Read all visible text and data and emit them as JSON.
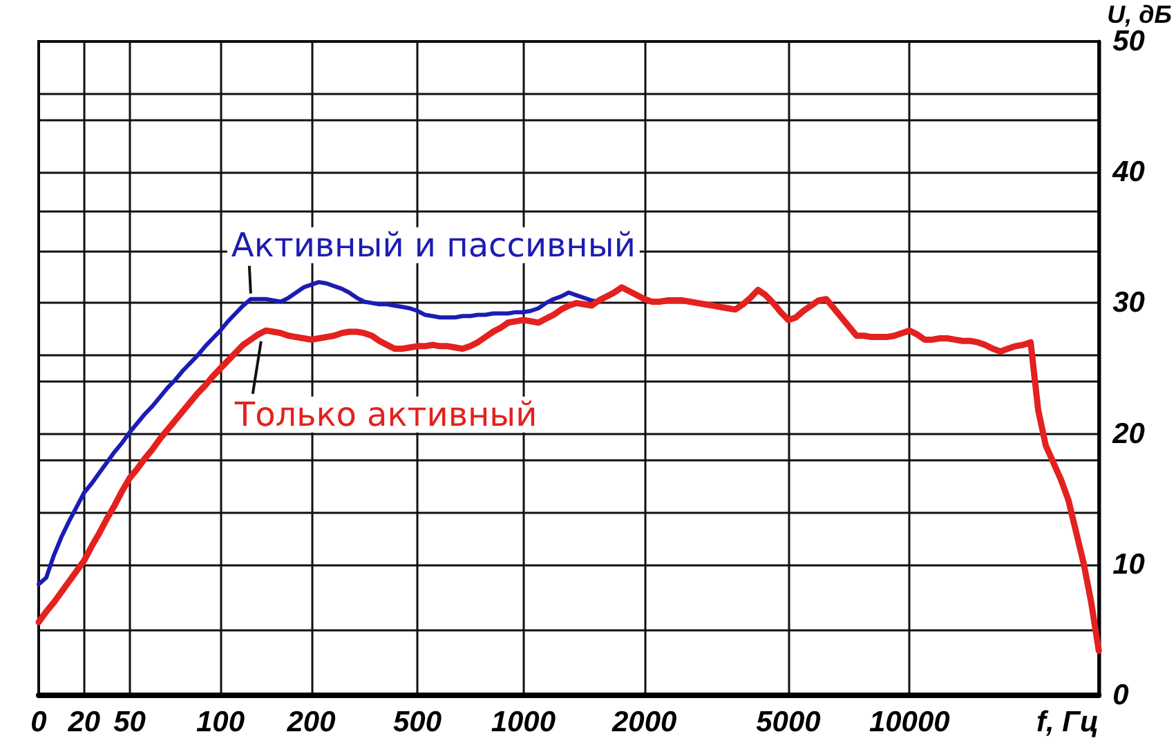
{
  "chart_data": {
    "type": "line",
    "xlabel": "f, Гц",
    "ylabel": "U, дБ",
    "grid": true,
    "legend": false,
    "marker": "none",
    "line_style": "solid",
    "categories": [
      "0",
      null,
      null,
      null,
      null,
      null,
      "20",
      null,
      null,
      null,
      null,
      null,
      "50",
      null,
      null,
      null,
      null,
      null,
      null,
      null,
      null,
      null,
      null,
      null,
      "100",
      null,
      null,
      null,
      null,
      null,
      null,
      null,
      null,
      null,
      null,
      null,
      "200",
      null,
      null,
      null,
      null,
      null,
      null,
      null,
      null,
      null,
      null,
      null,
      null,
      null,
      "500",
      null,
      null,
      null,
      null,
      null,
      null,
      null,
      null,
      null,
      null,
      null,
      null,
      null,
      "1000",
      null,
      null,
      null,
      null,
      null,
      null,
      null,
      null,
      null,
      null,
      null,
      null,
      null,
      null,
      null,
      "2000",
      null,
      null,
      null,
      null,
      null,
      null,
      null,
      null,
      null,
      null,
      null,
      null,
      null,
      null,
      null,
      null,
      null,
      null,
      "5000",
      null,
      null,
      null,
      null,
      null,
      null,
      null,
      null,
      null,
      null,
      null,
      null,
      null,
      null,
      null,
      "10000",
      null,
      null,
      null,
      null,
      null,
      null,
      null,
      null,
      null,
      null,
      null,
      null,
      null,
      null,
      null,
      null,
      null,
      null,
      null,
      null,
      null,
      null,
      null,
      null,
      null
    ],
    "ylim": [
      0,
      50
    ],
    "yticks": [
      0,
      {
        "value": 5,
        "label": null
      },
      10,
      {
        "value": 14,
        "label": null
      },
      {
        "value": 18,
        "label": null
      },
      20,
      {
        "value": 24,
        "label": null
      },
      {
        "value": 26,
        "label": null
      },
      30,
      {
        "value": 34,
        "label": null
      },
      {
        "value": 37,
        "label": null
      },
      40,
      {
        "value": 44,
        "label": null
      },
      {
        "value": 46,
        "label": null
      },
      50
    ],
    "series": [
      {
        "name": "Активный и пассивный",
        "color": "#1c1cb4",
        "values": [
          8.5,
          9,
          10.7,
          12.1,
          13.3,
          14.4,
          15.5,
          16.2,
          17,
          17.8,
          18.6,
          19.3,
          20.1,
          20.8,
          21.5,
          22.1,
          22.8,
          23.5,
          24.1,
          24.8,
          25.4,
          26,
          26.7,
          27.3,
          27.9,
          28.6,
          29.2,
          29.8,
          30.3,
          30.3,
          30.3,
          30.2,
          30.1,
          30.4,
          30.8,
          31.2,
          31.4,
          31.6,
          31.5,
          31.3,
          31.1,
          30.8,
          30.4,
          30.1,
          30,
          29.9,
          29.9,
          29.8,
          29.7,
          29.6,
          29.4,
          29.1,
          29,
          28.9,
          28.9,
          28.9,
          29,
          29,
          29.1,
          29.1,
          29.2,
          29.2,
          29.2,
          29.3,
          29.3,
          29.4,
          29.6,
          30,
          30.3,
          30.5,
          30.8,
          30.6,
          30.4,
          30.2,
          30.1,
          null,
          null,
          null,
          null,
          null,
          null,
          null,
          null,
          null,
          null,
          null,
          null,
          null,
          null,
          null,
          null,
          null,
          null,
          null,
          null,
          null,
          null,
          null,
          null,
          null,
          null,
          null,
          null,
          null,
          null,
          null,
          null,
          null,
          null,
          null,
          null,
          null,
          null,
          null,
          null,
          null,
          null,
          null,
          null,
          null,
          null,
          null,
          null,
          null,
          null,
          null,
          null,
          null,
          null,
          null,
          null,
          null,
          null,
          null,
          null,
          null,
          null,
          null,
          null,
          null,
          null
        ]
      },
      {
        "name": "Только активный",
        "color": "#e3211f",
        "values": [
          5.6,
          6.4,
          7.1,
          7.9,
          8.7,
          9.5,
          10.3,
          11.4,
          12.4,
          13.5,
          14.5,
          15.6,
          16.6,
          17.3,
          18.1,
          18.8,
          19.6,
          20.3,
          21,
          21.7,
          22.4,
          23.1,
          23.7,
          24.4,
          25,
          25.6,
          26.2,
          26.8,
          27.2,
          27.6,
          27.9,
          27.8,
          27.7,
          27.5,
          27.4,
          27.3,
          27.2,
          27.3,
          27.4,
          27.5,
          27.7,
          27.8,
          27.8,
          27.7,
          27.5,
          27.1,
          26.8,
          26.5,
          26.5,
          26.6,
          26.7,
          26.7,
          26.8,
          26.7,
          26.7,
          26.6,
          26.5,
          26.7,
          27,
          27.4,
          27.8,
          28.1,
          28.5,
          28.6,
          28.7,
          28.6,
          28.5,
          28.8,
          29.1,
          29.5,
          29.8,
          30,
          29.9,
          29.8,
          30.2,
          30.5,
          30.8,
          31.2,
          30.9,
          30.6,
          30.3,
          30.1,
          30.1,
          30.2,
          30.2,
          30.2,
          30.1,
          30,
          29.9,
          29.8,
          29.7,
          29.6,
          29.5,
          29.9,
          30.4,
          31,
          30.6,
          30,
          29.3,
          28.7,
          28.9,
          29.4,
          29.8,
          30.2,
          30.3,
          29.6,
          28.9,
          28.2,
          27.5,
          27.5,
          27.4,
          27.4,
          27.4,
          27.5,
          27.7,
          27.9,
          27.6,
          27.2,
          27.2,
          27.3,
          27.3,
          27.2,
          27.1,
          27.1,
          27,
          26.8,
          26.5,
          26.3,
          26.5,
          26.7,
          26.8,
          27,
          21.8,
          19.1,
          17.8,
          16.5,
          14.9,
          12.5,
          10.1,
          7.1,
          3.4
        ]
      }
    ]
  }
}
